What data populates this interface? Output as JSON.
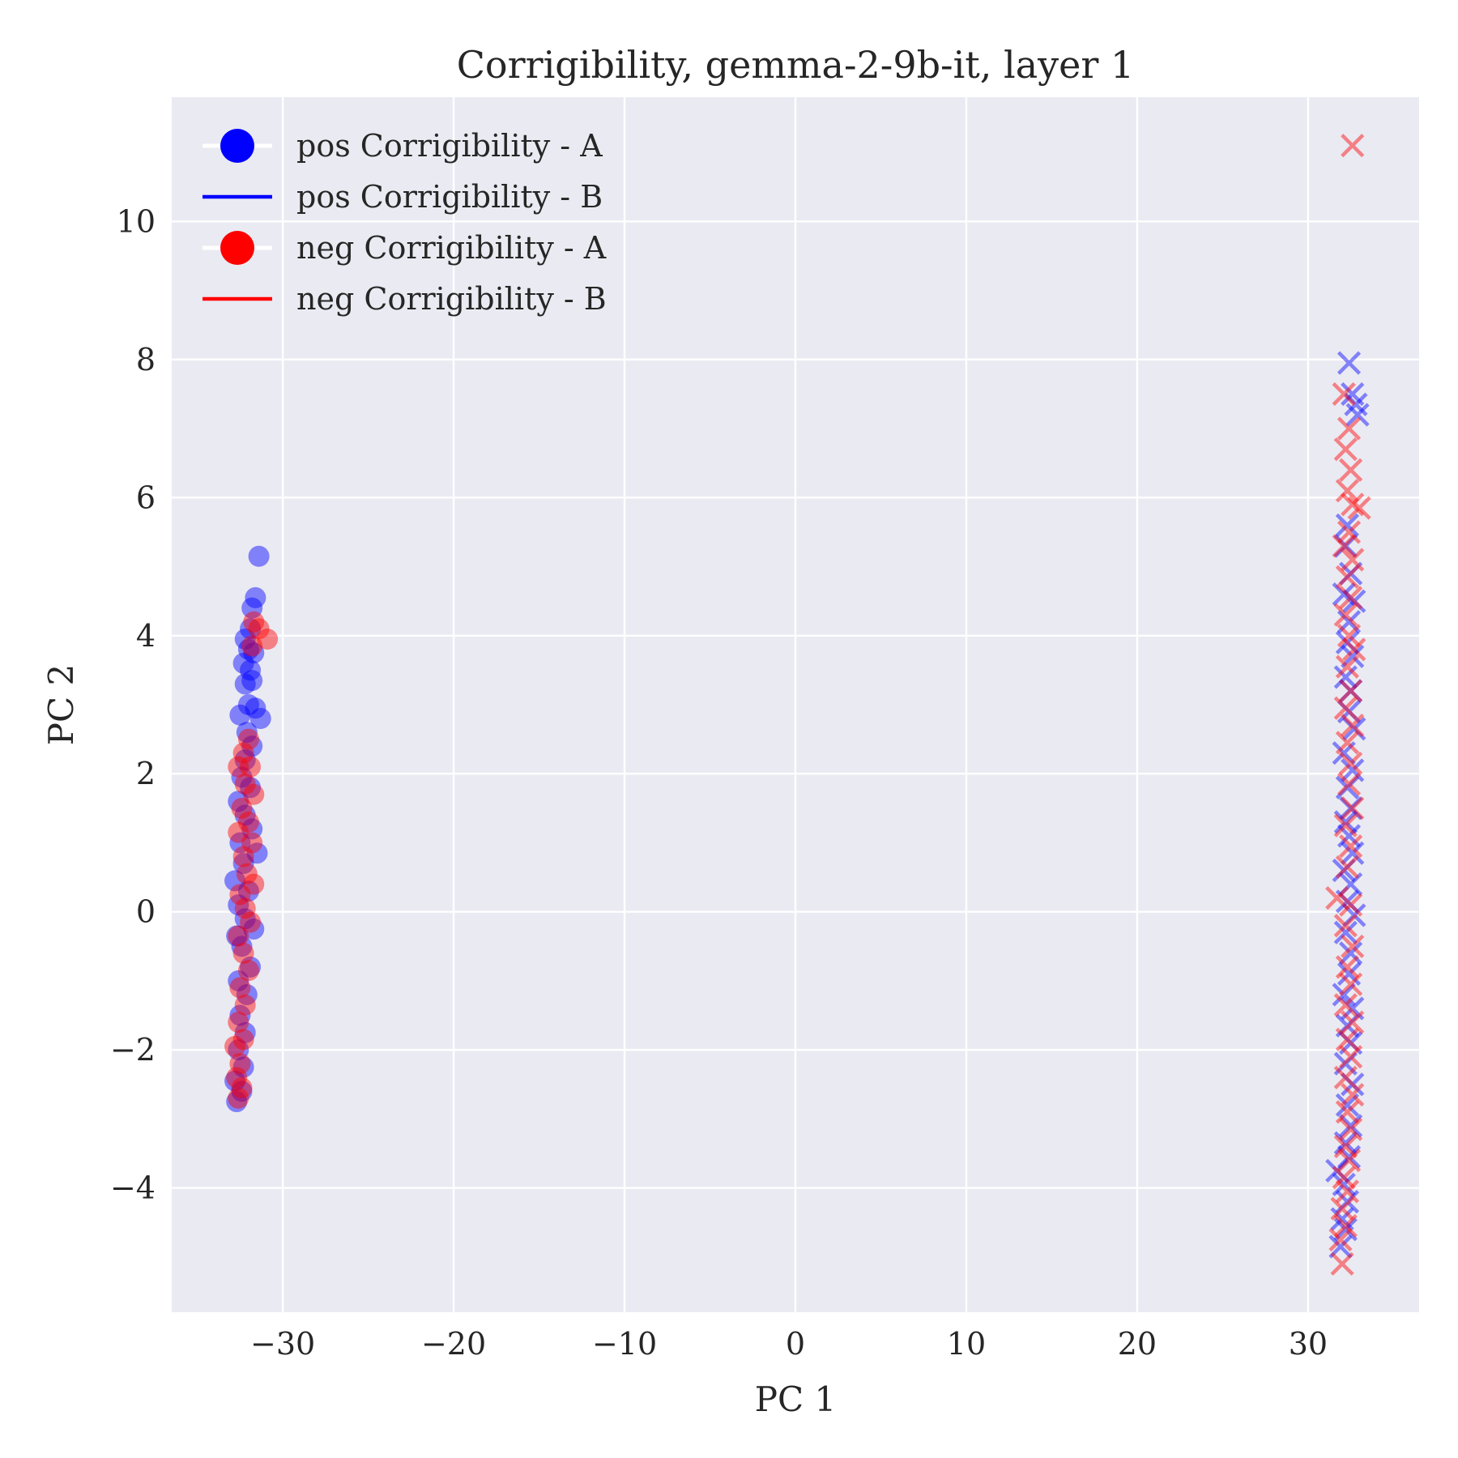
{
  "chart_data": {
    "type": "scatter",
    "title": "Corrigibility, gemma-2-9b-it, layer 1",
    "xlabel": "PC 1",
    "ylabel": "PC 2",
    "xlim": [
      -36.5,
      36.5
    ],
    "ylim": [
      -5.8,
      11.8
    ],
    "xticks": [
      -30,
      -20,
      -10,
      0,
      10,
      20,
      30
    ],
    "yticks": [
      -4,
      -2,
      0,
      2,
      4,
      6,
      8,
      10
    ],
    "xtick_labels": [
      "−30",
      "−20",
      "−10",
      "0",
      "10",
      "20",
      "30"
    ],
    "ytick_labels": [
      "−4",
      "−2",
      "0",
      "2",
      "4",
      "6",
      "8",
      "10"
    ],
    "grid": true,
    "legend_position": "top-left",
    "background": "#eaeaf2",
    "series": [
      {
        "name": "pos Corrigibility - A",
        "color": "#0000ff",
        "marker": "circle",
        "points": [
          [
            -31.4,
            5.15
          ],
          [
            -31.6,
            4.55
          ],
          [
            -31.8,
            4.4
          ],
          [
            -31.9,
            4.1
          ],
          [
            -32.2,
            3.95
          ],
          [
            -32.0,
            3.8
          ],
          [
            -31.7,
            3.75
          ],
          [
            -32.3,
            3.6
          ],
          [
            -31.9,
            3.5
          ],
          [
            -32.2,
            3.3
          ],
          [
            -31.8,
            3.35
          ],
          [
            -32.0,
            3.0
          ],
          [
            -31.6,
            2.95
          ],
          [
            -32.5,
            2.85
          ],
          [
            -31.3,
            2.8
          ],
          [
            -32.1,
            2.6
          ],
          [
            -31.8,
            2.4
          ],
          [
            -32.2,
            2.2
          ],
          [
            -32.4,
            1.95
          ],
          [
            -31.9,
            1.8
          ],
          [
            -32.6,
            1.6
          ],
          [
            -32.2,
            1.4
          ],
          [
            -31.8,
            1.2
          ],
          [
            -32.5,
            1.0
          ],
          [
            -31.5,
            0.85
          ],
          [
            -32.3,
            0.7
          ],
          [
            -32.8,
            0.45
          ],
          [
            -32.0,
            0.3
          ],
          [
            -32.6,
            0.1
          ],
          [
            -32.2,
            -0.1
          ],
          [
            -31.7,
            -0.25
          ],
          [
            -32.7,
            -0.35
          ],
          [
            -32.4,
            -0.5
          ],
          [
            -31.9,
            -0.8
          ],
          [
            -32.6,
            -1.0
          ],
          [
            -32.1,
            -1.2
          ],
          [
            -32.5,
            -1.5
          ],
          [
            -32.2,
            -1.75
          ],
          [
            -32.6,
            -2.0
          ],
          [
            -32.3,
            -2.25
          ],
          [
            -32.8,
            -2.45
          ],
          [
            -32.4,
            -2.6
          ],
          [
            -32.7,
            -2.75
          ]
        ]
      },
      {
        "name": "pos Corrigibility - B",
        "color": "#0000ff",
        "marker": "x",
        "points": [
          [
            32.4,
            7.95
          ],
          [
            32.6,
            7.5
          ],
          [
            32.8,
            7.35
          ],
          [
            32.9,
            7.2
          ],
          [
            32.3,
            5.6
          ],
          [
            32.2,
            5.3
          ],
          [
            32.5,
            4.9
          ],
          [
            32.1,
            4.6
          ],
          [
            32.7,
            4.5
          ],
          [
            32.4,
            4.2
          ],
          [
            32.3,
            3.9
          ],
          [
            32.6,
            3.7
          ],
          [
            32.2,
            3.4
          ],
          [
            32.5,
            3.2
          ],
          [
            32.4,
            2.9
          ],
          [
            32.7,
            2.65
          ],
          [
            32.1,
            2.3
          ],
          [
            32.6,
            2.05
          ],
          [
            32.3,
            1.8
          ],
          [
            32.5,
            1.5
          ],
          [
            32.2,
            1.3
          ],
          [
            32.4,
            1.1
          ],
          [
            32.6,
            0.85
          ],
          [
            32.1,
            0.6
          ],
          [
            32.5,
            0.4
          ],
          [
            32.3,
            0.15
          ],
          [
            32.7,
            -0.05
          ],
          [
            32.2,
            -0.3
          ],
          [
            32.5,
            -0.6
          ],
          [
            32.4,
            -0.9
          ],
          [
            32.1,
            -1.2
          ],
          [
            32.6,
            -1.4
          ],
          [
            32.3,
            -1.65
          ],
          [
            32.5,
            -1.9
          ],
          [
            32.2,
            -2.2
          ],
          [
            32.6,
            -2.5
          ],
          [
            32.3,
            -2.8
          ],
          [
            32.5,
            -3.1
          ],
          [
            32.2,
            -3.35
          ],
          [
            32.4,
            -3.55
          ],
          [
            31.7,
            -3.75
          ],
          [
            32.1,
            -3.95
          ],
          [
            32.3,
            -4.2
          ],
          [
            32.0,
            -4.45
          ],
          [
            32.2,
            -4.6
          ],
          [
            31.9,
            -4.85
          ]
        ]
      },
      {
        "name": "neg Corrigibility - A",
        "color": "#ff0000",
        "marker": "circle",
        "points": [
          [
            -31.7,
            4.2
          ],
          [
            -31.4,
            4.1
          ],
          [
            -30.9,
            3.95
          ],
          [
            -31.8,
            3.85
          ],
          [
            -32.0,
            2.5
          ],
          [
            -32.3,
            2.3
          ],
          [
            -31.9,
            2.1
          ],
          [
            -32.6,
            2.1
          ],
          [
            -32.2,
            1.85
          ],
          [
            -31.7,
            1.7
          ],
          [
            -32.4,
            1.5
          ],
          [
            -32.0,
            1.3
          ],
          [
            -32.6,
            1.15
          ],
          [
            -31.8,
            1.0
          ],
          [
            -32.3,
            0.8
          ],
          [
            -32.1,
            0.55
          ],
          [
            -31.7,
            0.4
          ],
          [
            -32.5,
            0.25
          ],
          [
            -32.2,
            0.05
          ],
          [
            -31.9,
            -0.15
          ],
          [
            -32.6,
            -0.35
          ],
          [
            -32.3,
            -0.6
          ],
          [
            -32.0,
            -0.85
          ],
          [
            -32.5,
            -1.1
          ],
          [
            -32.2,
            -1.35
          ],
          [
            -32.6,
            -1.6
          ],
          [
            -32.3,
            -1.85
          ],
          [
            -32.8,
            -1.95
          ],
          [
            -32.5,
            -2.2
          ],
          [
            -32.7,
            -2.4
          ],
          [
            -32.4,
            -2.55
          ],
          [
            -32.6,
            -2.7
          ]
        ]
      },
      {
        "name": "neg Corrigibility - B",
        "color": "#ff0000",
        "marker": "x",
        "points": [
          [
            32.6,
            11.1
          ],
          [
            32.1,
            7.5
          ],
          [
            32.4,
            7.0
          ],
          [
            32.2,
            6.7
          ],
          [
            32.5,
            6.4
          ],
          [
            32.3,
            6.1
          ],
          [
            32.6,
            5.9
          ],
          [
            33.0,
            5.85
          ],
          [
            32.4,
            5.5
          ],
          [
            32.1,
            5.3
          ],
          [
            32.6,
            5.1
          ],
          [
            32.3,
            4.85
          ],
          [
            32.5,
            4.55
          ],
          [
            32.2,
            4.3
          ],
          [
            32.4,
            4.0
          ],
          [
            32.7,
            3.8
          ],
          [
            32.3,
            3.55
          ],
          [
            32.5,
            3.2
          ],
          [
            32.2,
            2.95
          ],
          [
            32.6,
            2.7
          ],
          [
            32.3,
            2.45
          ],
          [
            32.5,
            2.15
          ],
          [
            32.4,
            1.85
          ],
          [
            32.6,
            1.5
          ],
          [
            32.2,
            1.25
          ],
          [
            32.5,
            0.95
          ],
          [
            32.3,
            0.65
          ],
          [
            31.7,
            0.2
          ],
          [
            32.5,
            0.1
          ],
          [
            32.2,
            -0.2
          ],
          [
            32.6,
            -0.5
          ],
          [
            32.3,
            -0.8
          ],
          [
            32.5,
            -1.05
          ],
          [
            32.2,
            -1.35
          ],
          [
            32.6,
            -1.6
          ],
          [
            32.3,
            -1.85
          ],
          [
            32.5,
            -2.1
          ],
          [
            32.2,
            -2.4
          ],
          [
            32.6,
            -2.65
          ],
          [
            32.3,
            -2.9
          ],
          [
            32.5,
            -3.15
          ],
          [
            32.2,
            -3.4
          ],
          [
            32.4,
            -3.6
          ],
          [
            32.1,
            -3.85
          ],
          [
            32.3,
            -4.05
          ],
          [
            32.0,
            -4.3
          ],
          [
            32.2,
            -4.55
          ],
          [
            31.9,
            -4.75
          ],
          [
            32.0,
            -5.1
          ]
        ]
      }
    ]
  }
}
